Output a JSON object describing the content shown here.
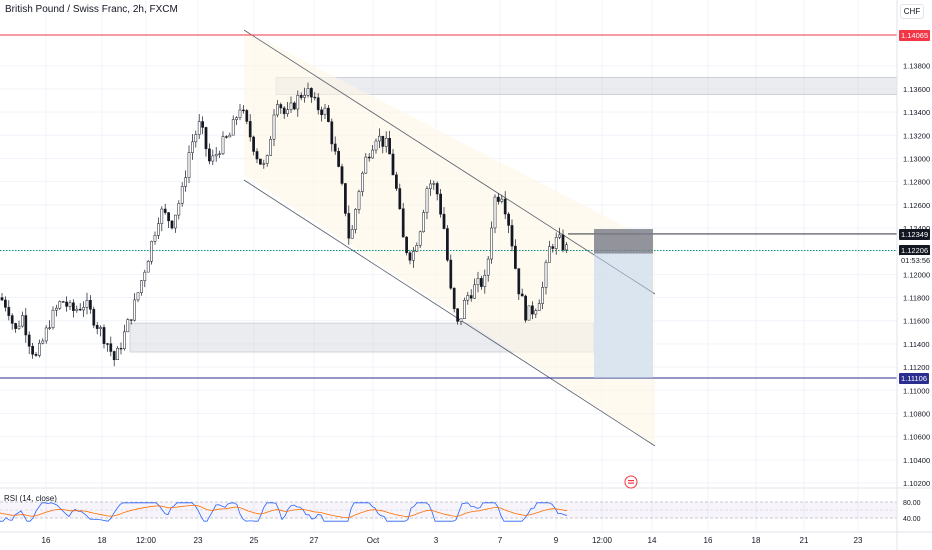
{
  "chart_title": "British Pound / Swiss Franc, 2h, FXCM",
  "currency_button": "CHF",
  "rsi_title": "RSI (14, close)",
  "colors": {
    "up": "#131722",
    "down": "#131722",
    "upFill": "#ffffff",
    "resistance": "#f23645",
    "support": "#2a2e8f",
    "last": "#089981",
    "rsi": "#2962ff",
    "rsiMa": "#ff6d00",
    "accent": "#131722"
  },
  "chart_data": {
    "type": "candlestick",
    "price_axis": {
      "ticks": [
        "1.14200",
        "1.13800",
        "1.13600",
        "1.13400",
        "1.13200",
        "1.13000",
        "1.12800",
        "1.12600",
        "1.12400",
        "1.12200",
        "1.12000",
        "1.11800",
        "1.11600",
        "1.11400",
        "1.11200",
        "1.11000",
        "1.10800",
        "1.10600",
        "1.10400",
        "1.10200"
      ],
      "ylim": [
        1.101,
        1.1428
      ]
    },
    "time_axis": {
      "ticks": [
        "16",
        "18",
        "12:00",
        "23",
        "25",
        "27",
        "Oct",
        "3",
        "7",
        "9",
        "12:00",
        "14",
        "16",
        "18",
        "21",
        "23"
      ],
      "tick_x": [
        46,
        102,
        146,
        198,
        254,
        314,
        373,
        436,
        500,
        556,
        602,
        652,
        708,
        756,
        804,
        858
      ]
    },
    "price_labels": {
      "resistance": "1.14065",
      "entry": "1.12349",
      "current": "1.12206",
      "countdown": "01:53:56",
      "target": "1.11106",
      "hidden": "1.12380"
    },
    "levels": {
      "resistance": 1.14065,
      "entry": 1.12349,
      "current": 1.12206,
      "target": 1.11106
    },
    "zones": [
      {
        "name": "upper-supply-zone",
        "from": 1.1355,
        "to": 1.137
      },
      {
        "name": "lower-demand-zone",
        "from": 1.1133,
        "to": 1.1158
      }
    ],
    "rsi": {
      "levels": [
        "80.00",
        "40.00"
      ],
      "range": [
        20,
        90
      ]
    }
  }
}
